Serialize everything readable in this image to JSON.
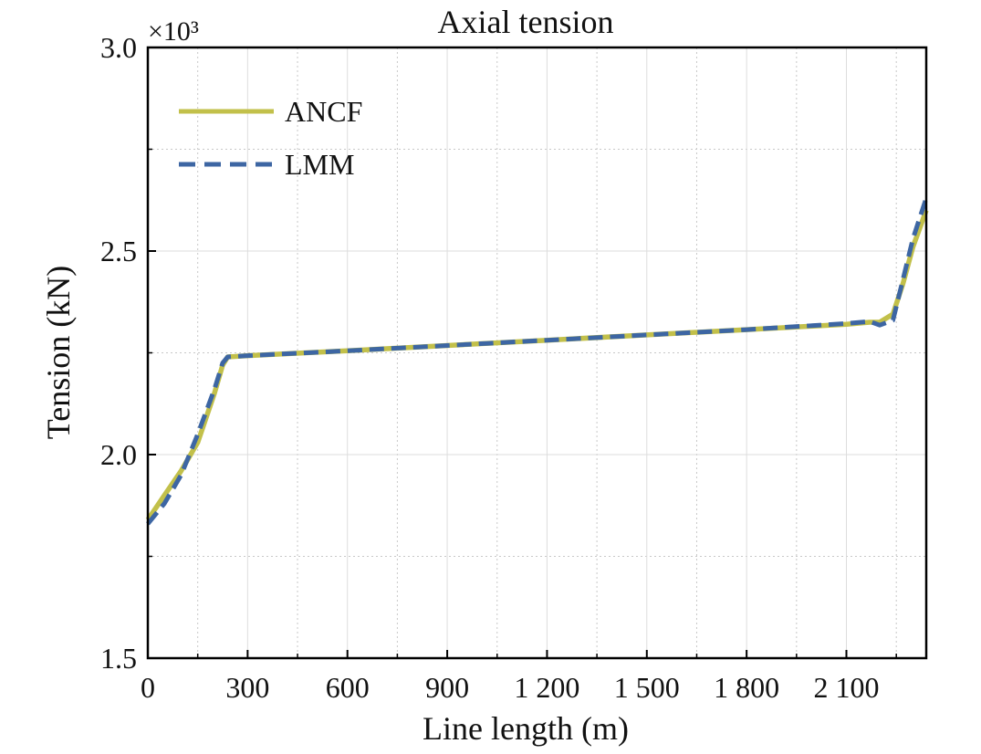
{
  "chart_data": {
    "type": "line",
    "title": "Axial tension",
    "xlabel": "Line length (m)",
    "ylabel": "Tension (kN)",
    "y_multiplier_label": "×10³",
    "xlim": [
      0,
      2340
    ],
    "ylim": [
      1.5,
      3.0
    ],
    "x_major_ticks": [
      0,
      300,
      600,
      900,
      1200,
      1500,
      1800,
      2100
    ],
    "x_tick_labels": [
      "0",
      "300",
      "600",
      "900",
      "1 200",
      "1 500",
      "1 800",
      "2 100"
    ],
    "x_minor_grid": [
      150,
      450,
      750,
      1050,
      1350,
      1650,
      1950,
      2250
    ],
    "y_major_ticks": [
      1.5,
      2.0,
      2.5,
      3.0
    ],
    "y_tick_labels": [
      "1.5",
      "2.0",
      "2.5",
      "3.0"
    ],
    "y_minor_grid": [
      1.75,
      2.25,
      2.75
    ],
    "grid": true,
    "legend_position": "top-left",
    "colors": {
      "ANCF": "#c2c04a",
      "LMM": "#3d66a3"
    },
    "series": [
      {
        "name": "ANCF",
        "style": "solid",
        "x": [
          0,
          50,
          100,
          150,
          200,
          225,
          240,
          300,
          600,
          900,
          1200,
          1500,
          1800,
          2100,
          2170,
          2200,
          2240,
          2270,
          2300,
          2340
        ],
        "y": [
          1.84,
          1.9,
          1.96,
          2.03,
          2.15,
          2.22,
          2.24,
          2.243,
          2.255,
          2.268,
          2.281,
          2.294,
          2.307,
          2.32,
          2.325,
          2.325,
          2.345,
          2.42,
          2.51,
          2.6
        ]
      },
      {
        "name": "LMM",
        "style": "dashed",
        "x": [
          0,
          50,
          100,
          150,
          200,
          225,
          240,
          300,
          600,
          900,
          1200,
          1500,
          1800,
          2100,
          2170,
          2200,
          2240,
          2270,
          2300,
          2340
        ],
        "y": [
          1.83,
          1.88,
          1.95,
          2.05,
          2.16,
          2.225,
          2.24,
          2.243,
          2.255,
          2.268,
          2.281,
          2.294,
          2.307,
          2.322,
          2.327,
          2.318,
          2.33,
          2.43,
          2.53,
          2.63
        ]
      }
    ]
  }
}
